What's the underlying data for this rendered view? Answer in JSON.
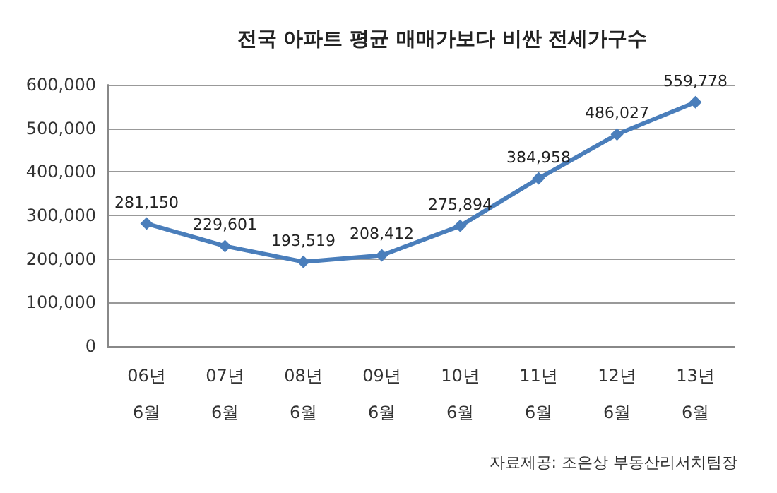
{
  "chart_data": {
    "type": "line",
    "title": "전국 아파트 평균 매매가보다 비싼 전세가구수",
    "categories": [
      "06년\n6월",
      "07년\n6월",
      "08년\n6월",
      "09년\n6월",
      "10년\n6월",
      "11년\n6월",
      "12년\n6월",
      "13년\n6월"
    ],
    "series": [
      {
        "color": "#4a7ebb",
        "values": [
          281150,
          229601,
          193519,
          208412,
          275894,
          384958,
          486027,
          559778
        ],
        "value_labels": [
          "281,150",
          "229,601",
          "193,519",
          "208,412",
          "275,894",
          "384,958",
          "486,027",
          "559,778"
        ]
      }
    ],
    "ylim": [
      0,
      600000
    ],
    "yticks": [
      0,
      {
        "value": 100000,
        "label": "100,000"
      },
      {
        "value": 200000,
        "label": "200,000"
      },
      {
        "value": 300000,
        "label": "300,000"
      },
      {
        "value": 400000,
        "label": "400,000"
      },
      {
        "value": 500000,
        "label": "500,000"
      },
      {
        "value": 600000,
        "label": "600,000"
      }
    ],
    "grid": "y",
    "marker": "diamond",
    "line_style": "solid",
    "annotations": [
      "자료제공: 조은상 부동산리서치팀장"
    ]
  }
}
